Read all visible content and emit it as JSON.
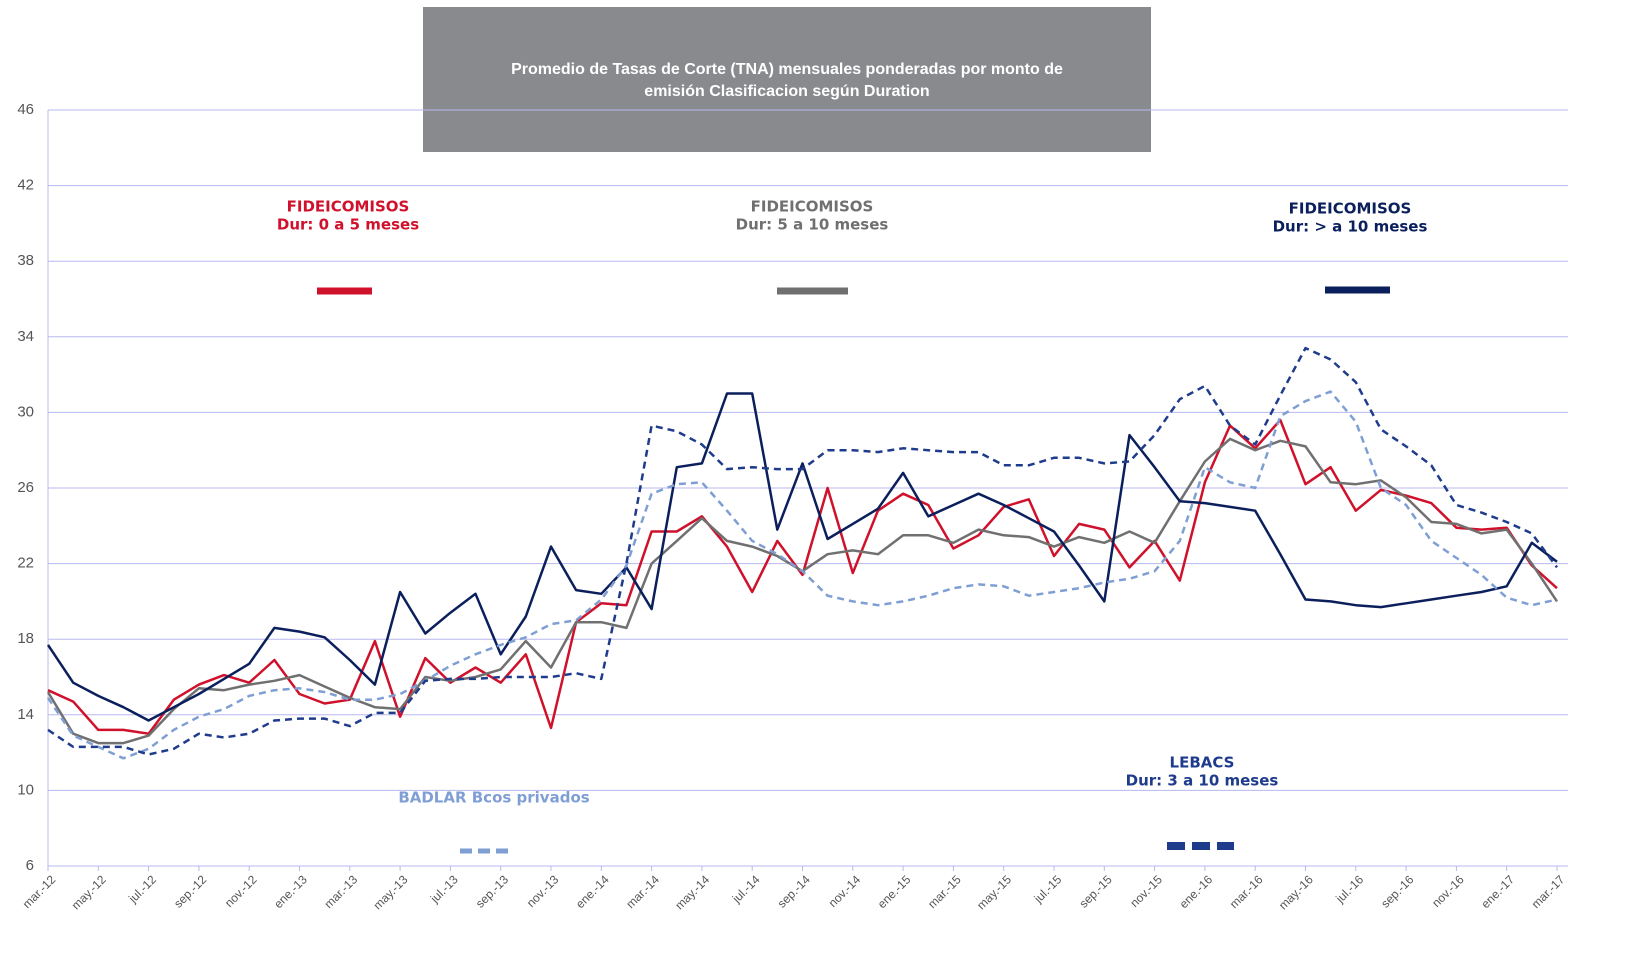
{
  "chart_data": {
    "type": "line",
    "title": [
      "Promedio de Tasas de Corte (TNA) mensuales ponderadas por monto de",
      "emisión Clasificacion según Duration"
    ],
    "categories": [
      "mar.-12",
      null,
      "may.-12",
      null,
      "jul.-12",
      null,
      "sep.-12",
      null,
      "nov.-12",
      null,
      "ene.-13",
      null,
      "mar.-13",
      null,
      "may.-13",
      null,
      "jul.-13",
      null,
      "sep.-13",
      null,
      "nov.-13",
      null,
      "ene.-14",
      null,
      "mar.-14",
      null,
      "may.-14",
      null,
      "jul.-14",
      null,
      "sep.-14",
      null,
      "nov.-14",
      null,
      "ene.-15",
      null,
      "mar.-15",
      null,
      "may.-15",
      null,
      "jul.-15",
      null,
      "sep.-15",
      null,
      "nov.-15",
      null,
      "ene.-16",
      null,
      "mar.-16",
      null,
      "may.-16",
      null,
      "jul.-16",
      null,
      "sep.-16",
      null,
      "nov.-16",
      null,
      "ene.-17",
      null,
      "mar.-17"
    ],
    "series": [
      {
        "name": [
          "FIDEICOMISOS",
          "Dur: 0 a 5 meses"
        ],
        "color": "#d0112b",
        "style": "solid",
        "values": [
          15.3,
          14.7,
          13.2,
          13.2,
          13.0,
          14.8,
          15.6,
          16.1,
          15.7,
          16.9,
          15.1,
          14.6,
          14.8,
          17.9,
          13.9,
          17.0,
          15.7,
          16.5,
          15.7,
          17.2,
          13.3,
          18.9,
          19.9,
          19.8,
          23.7,
          23.7,
          24.5,
          22.9,
          20.5,
          23.2,
          21.4,
          26.0,
          21.5,
          24.8,
          25.7,
          25.1,
          22.8,
          23.5,
          25.0,
          25.4,
          22.4,
          24.1,
          23.8,
          21.8,
          23.2,
          21.1,
          26.3,
          29.3,
          28.1,
          29.6,
          26.2,
          27.1,
          24.8,
          25.9,
          25.6,
          25.2,
          23.9,
          23.8,
          23.9,
          21.9,
          20.7
        ]
      },
      {
        "name": [
          "FIDEICOMISOS",
          "Dur: 5 a 10 meses"
        ],
        "color": "#707070",
        "style": "solid",
        "values": [
          15.2,
          13.0,
          12.5,
          12.5,
          12.9,
          14.3,
          15.4,
          15.3,
          15.6,
          15.8,
          16.1,
          15.5,
          14.9,
          14.4,
          14.3,
          16.0,
          15.8,
          16.0,
          16.4,
          17.9,
          16.5,
          18.9,
          18.9,
          18.6,
          22.0,
          23.2,
          24.4,
          23.2,
          22.9,
          22.4,
          21.6,
          22.5,
          22.7,
          22.5,
          23.5,
          23.5,
          23.1,
          23.8,
          23.5,
          23.4,
          22.9,
          23.4,
          23.1,
          23.7,
          23.1,
          25.3,
          27.4,
          28.6,
          28.0,
          28.5,
          28.2,
          26.3,
          26.2,
          26.4,
          25.5,
          24.2,
          24.1,
          23.6,
          23.8,
          22.0,
          20.0
        ]
      },
      {
        "name": [
          "FIDEICOMISOS",
          "Dur: > a 10 meses"
        ],
        "color": "#0a1f5c",
        "style": "solid",
        "values": [
          17.7,
          15.7,
          15.0,
          14.4,
          13.7,
          14.4,
          15.1,
          15.9,
          16.7,
          18.6,
          18.4,
          18.1,
          16.9,
          15.6,
          20.5,
          18.3,
          19.4,
          20.4,
          17.2,
          19.2,
          22.9,
          20.6,
          20.4,
          21.8,
          19.6,
          27.1,
          27.3,
          31.0,
          31.0,
          23.8,
          27.3,
          23.3,
          24.1,
          24.9,
          26.8,
          24.5,
          25.1,
          25.7,
          25.1,
          24.4,
          23.7,
          21.9,
          20.0,
          28.8,
          27.1,
          25.3,
          25.2,
          25.0,
          24.8,
          22.5,
          20.1,
          20.0,
          19.8,
          19.7,
          19.9,
          20.1,
          20.3,
          20.5,
          20.8,
          23.1,
          22.1
        ]
      },
      {
        "name": [
          "BADLAR Bcos privados"
        ],
        "color": "#7f9fd4",
        "style": "dashed",
        "values": [
          14.9,
          12.9,
          12.3,
          11.7,
          12.2,
          13.2,
          13.9,
          14.3,
          15.0,
          15.3,
          15.4,
          15.2,
          14.8,
          14.8,
          15.1,
          15.8,
          16.6,
          17.2,
          17.7,
          18.1,
          18.8,
          19.0,
          20.1,
          21.9,
          25.7,
          26.2,
          26.3,
          24.8,
          23.2,
          22.5,
          21.6,
          20.3,
          20.0,
          19.8,
          20.0,
          20.3,
          20.7,
          20.9,
          20.8,
          20.3,
          20.5,
          20.7,
          21.0,
          21.2,
          21.6,
          23.2,
          27.1,
          26.3,
          26.0,
          29.8,
          30.6,
          31.1,
          29.5,
          26.0,
          25.1,
          23.2,
          22.3,
          21.4,
          20.2,
          19.8,
          20.1
        ]
      },
      {
        "name": [
          "LEBACS",
          "Dur: 3 a 10 meses"
        ],
        "color": "#1f3c8c",
        "style": "dashed",
        "values": [
          13.2,
          12.3,
          12.3,
          12.3,
          11.9,
          12.2,
          13.0,
          12.8,
          13.0,
          13.7,
          13.8,
          13.8,
          13.4,
          14.1,
          14.1,
          15.8,
          15.9,
          15.9,
          16.0,
          16.0,
          16.0,
          16.2,
          15.9,
          22.0,
          29.3,
          29.0,
          28.3,
          27.0,
          27.1,
          27.0,
          27.0,
          28.0,
          28.0,
          27.9,
          28.1,
          28.0,
          27.9,
          27.9,
          27.2,
          27.2,
          27.6,
          27.6,
          27.3,
          27.4,
          28.8,
          30.7,
          31.4,
          29.3,
          28.3,
          30.9,
          33.4,
          32.8,
          31.6,
          29.1,
          28.2,
          27.2,
          25.1,
          24.7,
          24.2,
          23.6,
          21.8
        ]
      }
    ],
    "ylim": [
      6,
      46
    ],
    "yticks": [
      6,
      10,
      14,
      18,
      22,
      26,
      30,
      34,
      38,
      42,
      46
    ],
    "grid": true
  }
}
